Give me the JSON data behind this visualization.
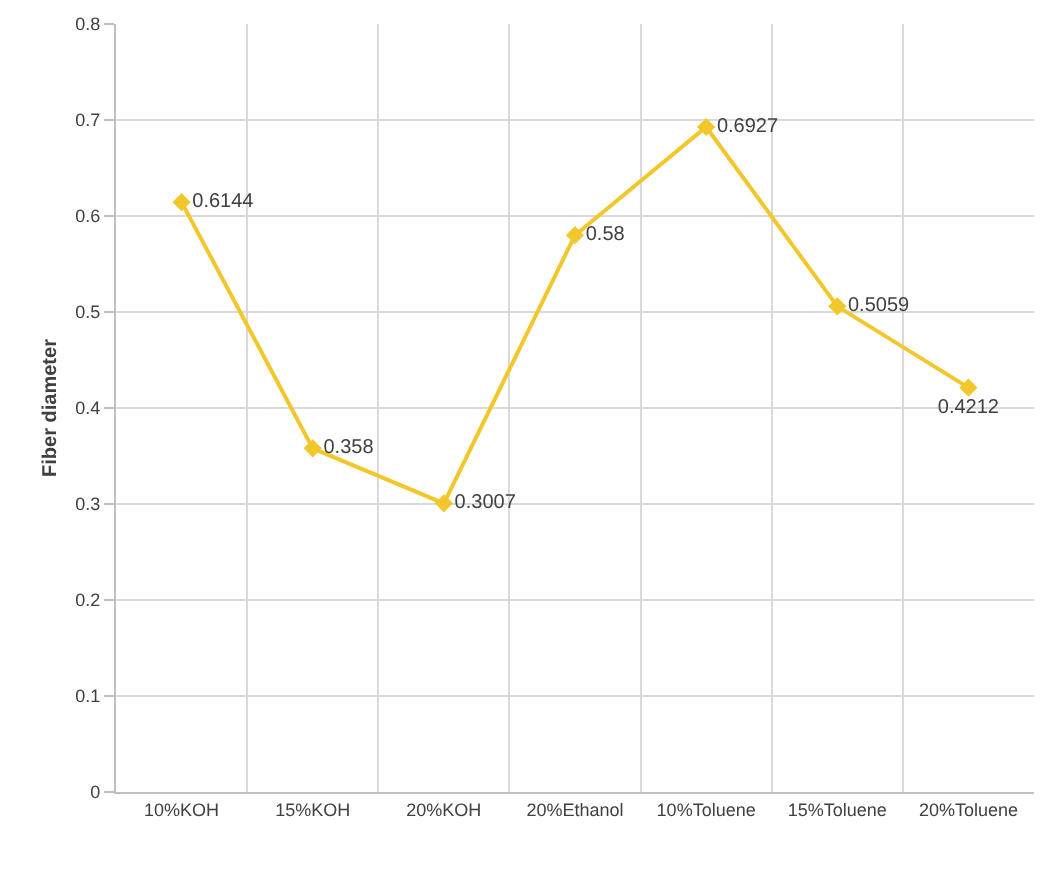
{
  "chart_data": {
    "type": "line",
    "ylabel": "Fiber diameter",
    "categories": [
      "10%KOH",
      "15%KOH",
      "20%KOH",
      "20%Ethanol",
      "10%Toluene",
      "15%Toluene",
      "20%Toluene"
    ],
    "values": [
      0.6144,
      0.358,
      0.3007,
      0.58,
      0.6927,
      0.5059,
      0.4212
    ],
    "color": "#f2c72c",
    "marker": "diamond",
    "line_style": "solid",
    "ylim": [
      0,
      0.8
    ],
    "yticks": [
      0,
      0.1,
      0.2,
      0.3,
      0.4,
      0.5,
      0.6,
      0.7,
      0.8
    ],
    "grid": true,
    "data_labels": true
  }
}
